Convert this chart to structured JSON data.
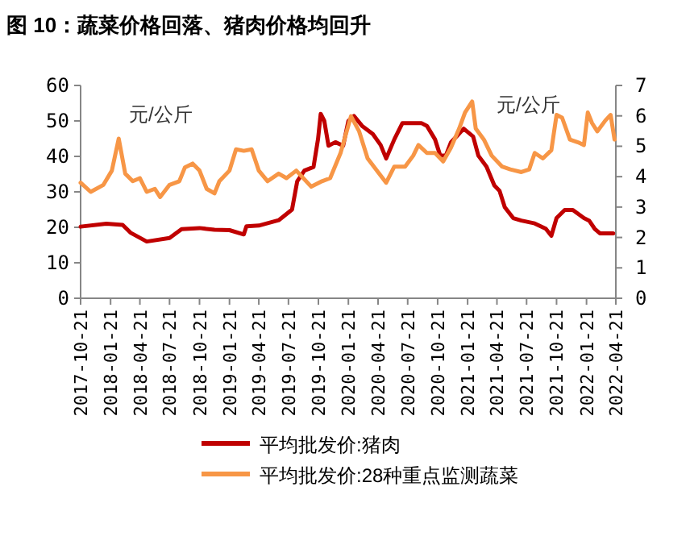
{
  "chart_data": {
    "type": "line",
    "title": "图 10：蔬菜价格回落、猪肉价格均回升",
    "ylabel": "元/公斤",
    "y2label": "元/公斤",
    "xlim": [
      "2017-10-21",
      "2022-04-21"
    ],
    "xticks": [
      "2017-10-21",
      "2018-01-21",
      "2018-04-21",
      "2018-07-21",
      "2018-10-21",
      "2019-01-21",
      "2019-04-21",
      "2019-07-21",
      "2019-10-21",
      "2020-01-21",
      "2020-04-21",
      "2020-07-21",
      "2020-10-21",
      "2021-01-21",
      "2021-04-21",
      "2021-07-21",
      "2021-10-21",
      "2022-01-21",
      "2022-04-21"
    ],
    "ylim": [
      0,
      60
    ],
    "yticks": [
      0,
      10,
      20,
      30,
      40,
      50,
      60
    ],
    "y2lim": [
      0,
      7
    ],
    "y2ticks": [
      0,
      1,
      2,
      3,
      4,
      5,
      6,
      7
    ],
    "grid": false,
    "legend": "bottom",
    "marker": "none",
    "line_style": "solid",
    "series": [
      {
        "name": "平均批发价:猪肉",
        "color": "#c00000",
        "axis": "y",
        "x": [
          "2017-10-21",
          "2018-01-08",
          "2018-02-27",
          "2018-03-23",
          "2018-05-12",
          "2018-07-21",
          "2018-08-27",
          "2018-10-21",
          "2018-12-06",
          "2019-01-21",
          "2019-03-06",
          "2019-03-14",
          "2019-04-21",
          "2019-06-21",
          "2019-08-01",
          "2019-08-17",
          "2019-09-08",
          "2019-10-06",
          "2019-10-20",
          "2019-10-28",
          "2019-11-08",
          "2019-11-21",
          "2019-12-12",
          "2020-01-05",
          "2020-01-21",
          "2020-02-07",
          "2020-03-03",
          "2020-04-05",
          "2020-04-29",
          "2020-05-16",
          "2020-06-10",
          "2020-07-05",
          "2020-07-21",
          "2020-09-01",
          "2020-09-18",
          "2020-10-13",
          "2020-10-29",
          "2020-11-15",
          "2020-12-01",
          "2020-12-18",
          "2021-01-09",
          "2021-02-07",
          "2021-02-23",
          "2021-03-20",
          "2021-04-13",
          "2021-04-29",
          "2021-05-15",
          "2021-06-10",
          "2021-07-05",
          "2021-08-15",
          "2021-09-18",
          "2021-10-05",
          "2021-10-21",
          "2021-11-15",
          "2021-12-10",
          "2022-01-13",
          "2022-01-29",
          "2022-02-15",
          "2022-03-03",
          "2022-04-13"
        ],
        "values": [
          20.2,
          21,
          20.7,
          18.5,
          16,
          17,
          19.5,
          19.8,
          19.3,
          19.2,
          18,
          20.3,
          20.5,
          22,
          25,
          33,
          36,
          37,
          45,
          52,
          50,
          43,
          44,
          43,
          50,
          51.4,
          48.6,
          46.3,
          43.2,
          39.4,
          44.8,
          49.4,
          49.4,
          49.4,
          48.6,
          44.8,
          40.2,
          40.2,
          44,
          45.6,
          47.8,
          45.6,
          40.2,
          37.1,
          31.8,
          30.3,
          25.7,
          22.6,
          21.9,
          21.1,
          19.6,
          17.6,
          22.6,
          24.9,
          24.9,
          22.6,
          21.9,
          19.6,
          18.3,
          18.3
        ]
      },
      {
        "name": "平均批发价:28种重点监测蔬菜",
        "color": "#f79646",
        "axis": "y2",
        "x": [
          "2017-10-21",
          "2017-11-21",
          "2017-12-30",
          "2018-01-25",
          "2018-02-15",
          "2018-03-07",
          "2018-03-30",
          "2018-04-21",
          "2018-05-12",
          "2018-06-06",
          "2018-06-22",
          "2018-07-21",
          "2018-08-20",
          "2018-09-06",
          "2018-09-30",
          "2018-10-21",
          "2018-11-12",
          "2018-12-06",
          "2018-12-21",
          "2019-01-21",
          "2019-02-10",
          "2019-03-06",
          "2019-03-30",
          "2019-04-21",
          "2019-05-18",
          "2019-06-21",
          "2019-07-15",
          "2019-08-14",
          "2019-09-29",
          "2019-11-01",
          "2019-11-26",
          "2019-12-28",
          "2020-01-29",
          "2020-02-23",
          "2020-03-20",
          "2020-04-21",
          "2020-05-16",
          "2020-06-10",
          "2020-07-13",
          "2020-08-07",
          "2020-08-23",
          "2020-09-18",
          "2020-10-13",
          "2020-11-07",
          "2020-12-01",
          "2020-12-26",
          "2021-01-13",
          "2021-02-04",
          "2021-02-15",
          "2021-03-12",
          "2021-04-05",
          "2021-05-07",
          "2021-06-01",
          "2021-07-05",
          "2021-07-29",
          "2021-08-15",
          "2021-09-09",
          "2021-10-05",
          "2021-10-21",
          "2021-11-07",
          "2021-12-01",
          "2021-12-26",
          "2022-01-13",
          "2022-01-25",
          "2022-02-07",
          "2022-02-23",
          "2022-03-20",
          "2022-04-05",
          "2022-04-17"
        ],
        "values": [
          3.8,
          3.5,
          3.73,
          4.2,
          5.25,
          4.1,
          3.85,
          3.95,
          3.5,
          3.6,
          3.33,
          3.73,
          3.85,
          4.3,
          4.43,
          4.2,
          3.6,
          3.45,
          3.85,
          4.2,
          4.9,
          4.85,
          4.9,
          4.2,
          3.85,
          4.1,
          3.95,
          4.2,
          3.67,
          3.85,
          3.95,
          4.78,
          5.99,
          5.49,
          4.6,
          4.15,
          3.8,
          4.33,
          4.33,
          4.69,
          5.04,
          4.78,
          4.78,
          4.5,
          4.96,
          5.58,
          6.11,
          6.47,
          5.58,
          5.22,
          4.69,
          4.33,
          4.24,
          4.15,
          4.24,
          4.78,
          4.6,
          4.87,
          6.03,
          5.94,
          5.22,
          5.13,
          5.04,
          6.11,
          5.76,
          5.49,
          5.85,
          6.03,
          5.22
        ]
      }
    ]
  }
}
